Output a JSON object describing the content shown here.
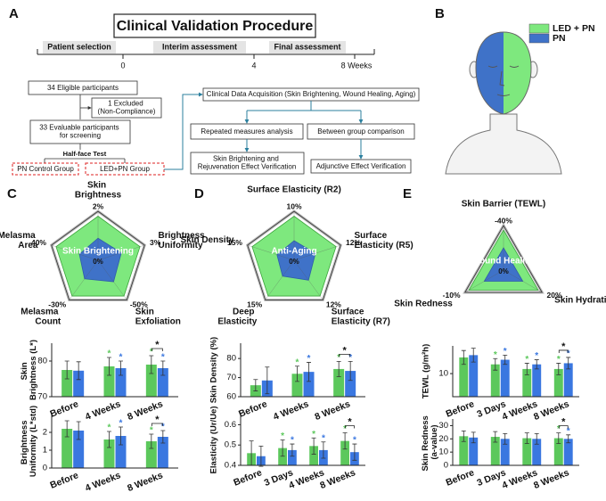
{
  "panels": [
    "A",
    "B",
    "C",
    "D",
    "E"
  ],
  "procedure": {
    "title": "Clinical Validation Procedure",
    "phases": [
      "Patient selection",
      "Interim assessment",
      "Final assessment"
    ],
    "timeline_ticks": [
      "0",
      "4",
      "8 Weeks"
    ],
    "eligible": "34 Eligible participants",
    "excluded": "1 Excluded (Non-Compliance)",
    "evaluable": "33 Evaluable participants for screening",
    "test": "Half-face Test",
    "groups": [
      "PN Control Group",
      "LED+PN Group"
    ],
    "acquisition": "Clinical Data Acquisition (Skin Brightening, Wound Healing, Aging)",
    "analyses": [
      "Repeated measures analysis",
      "Between group comparison"
    ],
    "outcomes": [
      "Skin Brightening and Rejuvenation Effect Verification",
      "Adjunctive Effect Verification"
    ]
  },
  "legend": {
    "series": [
      {
        "name": "LED + PN",
        "color": "#7ee87e"
      },
      {
        "name": "PN",
        "color": "#3f72c8"
      }
    ]
  },
  "chart_data": [
    {
      "type": "radar",
      "center_label": "Skin Brightening",
      "origin_label": "0%",
      "axes": [
        {
          "name": "Skin Brightness",
          "max": {
            "value": 2,
            "label": "2%"
          }
        },
        {
          "name": "Brightness Uniformity",
          "max": {
            "value": 3,
            "label": "3%"
          }
        },
        {
          "name": "Skin Exfoliation",
          "max": {
            "value": -50,
            "label": "-50%"
          }
        },
        {
          "name": "Melasma Count",
          "max": {
            "value": -30,
            "label": "-30%"
          }
        },
        {
          "name": "Melasma Area",
          "max": {
            "value": -40,
            "label": "-40%"
          }
        }
      ],
      "series": [
        {
          "color": "#7ee87e",
          "values": [
            1.8,
            2.7,
            -45,
            -27,
            -36
          ]
        },
        {
          "color": "#3f72c8",
          "values": [
            0.9,
            1.5,
            -27,
            -14,
            -16
          ]
        }
      ]
    },
    {
      "type": "radar",
      "center_label": "Anti-Aging",
      "origin_label": "0%",
      "axes": [
        {
          "name": "Surface Elasticity (R2)",
          "max": {
            "value": 10,
            "label": "10%"
          }
        },
        {
          "name": "Surface Elasticity (R5)",
          "max": {
            "value": 12,
            "label": "12%"
          }
        },
        {
          "name": "Surface Elasticity (R7)",
          "max": {
            "value": 12,
            "label": "12%"
          }
        },
        {
          "name": "Deep Elasticity",
          "max": {
            "value": 15,
            "label": "15%"
          }
        },
        {
          "name": "Skin Density",
          "max": {
            "value": 15,
            "label": "15%"
          }
        }
      ],
      "series": [
        {
          "color": "#7ee87e",
          "values": [
            9,
            10.8,
            10.8,
            13.5,
            13.5
          ]
        },
        {
          "color": "#3f72c8",
          "values": [
            4,
            5.5,
            6,
            6,
            5.5
          ]
        }
      ]
    },
    {
      "type": "radar",
      "center_label": "Wound Healing",
      "origin_label": "0%",
      "axes": [
        {
          "name": "Skin Barrier (TEWL)",
          "max": {
            "value": -40,
            "label": "-40%"
          }
        },
        {
          "name": "Skin Hydration",
          "max": {
            "value": 20,
            "label": "20%"
          }
        },
        {
          "name": "Skin Redness",
          "max": {
            "value": -10,
            "label": "-10%"
          }
        }
      ],
      "series": [
        {
          "color": "#7ee87e",
          "values": [
            -36,
            18,
            -9
          ]
        },
        {
          "color": "#3f72c8",
          "values": [
            -20,
            10,
            -5
          ]
        }
      ]
    },
    {
      "type": "bar",
      "ylabel": "Skin Brightness (L*)",
      "categories": [
        "Before",
        "4 Weeks",
        "8 Weeks"
      ],
      "ylim": [
        70,
        85
      ],
      "yticks": [
        70,
        80
      ],
      "series": [
        {
          "color": "#5cc85c",
          "values": [
            77.5,
            78.5,
            79
          ],
          "errors": [
            2.5,
            2.5,
            2.5
          ],
          "markers": [
            null,
            "*",
            "*"
          ]
        },
        {
          "color": "#3a77e0",
          "values": [
            77.3,
            78,
            78
          ],
          "errors": [
            2.5,
            2,
            2
          ],
          "markers": [
            null,
            "*",
            "*"
          ]
        }
      ],
      "comparison": [
        null,
        null,
        "*"
      ]
    },
    {
      "type": "bar",
      "ylabel": "Brightness Uniformity (L*std)",
      "categories": [
        "Before",
        "4 Weeks",
        "8 Weeks"
      ],
      "ylim": [
        0,
        3
      ],
      "yticks": [
        0,
        1,
        2
      ],
      "series": [
        {
          "color": "#5cc85c",
          "values": [
            2.2,
            1.6,
            1.5
          ],
          "errors": [
            0.45,
            0.45,
            0.4
          ],
          "markers": [
            null,
            "*",
            "*"
          ]
        },
        {
          "color": "#3a77e0",
          "values": [
            2.1,
            1.8,
            1.75
          ],
          "errors": [
            0.5,
            0.5,
            0.35
          ],
          "markers": [
            null,
            "*",
            "*"
          ]
        }
      ],
      "comparison": [
        null,
        null,
        "*"
      ]
    },
    {
      "type": "bar",
      "ylabel": "Skin Density (%)",
      "categories": [
        "Before",
        "4 Weeks",
        "8 Weeks"
      ],
      "ylim": [
        60,
        88
      ],
      "yticks": [
        60,
        70,
        80
      ],
      "series": [
        {
          "color": "#5cc85c",
          "values": [
            66,
            72,
            74.5
          ],
          "errors": [
            3,
            4,
            4
          ],
          "markers": [
            null,
            "*",
            "*"
          ]
        },
        {
          "color": "#3a77e0",
          "values": [
            68.5,
            73,
            73.5
          ],
          "errors": [
            7,
            5,
            5
          ],
          "markers": [
            null,
            "*",
            "*"
          ]
        }
      ],
      "comparison": [
        null,
        null,
        "*"
      ]
    },
    {
      "type": "bar",
      "ylabel": "Elasticity (Ur/Ue)",
      "categories": [
        "Before",
        "3 Days",
        "4 Weeks",
        "8 Weeks"
      ],
      "ylim": [
        0.4,
        0.65
      ],
      "yticks": [
        0.4,
        0.5,
        0.6
      ],
      "series": [
        {
          "color": "#5cc85c",
          "values": [
            0.46,
            0.485,
            0.495,
            0.52
          ],
          "errors": [
            0.06,
            0.04,
            0.04,
            0.04
          ],
          "markers": [
            null,
            "*",
            "*",
            "*"
          ]
        },
        {
          "color": "#3a77e0",
          "values": [
            0.445,
            0.475,
            0.475,
            0.465
          ],
          "errors": [
            0.05,
            0.03,
            0.04,
            0.04
          ],
          "markers": [
            null,
            "*",
            "*",
            "*"
          ]
        }
      ],
      "comparison": [
        null,
        null,
        null,
        "*"
      ]
    },
    {
      "type": "bar",
      "ylabel": "TEWL (g/m²h)",
      "categories": [
        "Before",
        "3 Days",
        "4 Weeks",
        "8 Weeks"
      ],
      "ylim": [
        0,
        22
      ],
      "yticks": [
        10
      ],
      "series": [
        {
          "color": "#5cc85c",
          "values": [
            17,
            14,
            12,
            12
          ],
          "errors": [
            3,
            2.5,
            2.5,
            2.5
          ],
          "markers": [
            null,
            "*",
            "*",
            "*"
          ]
        },
        {
          "color": "#3a77e0",
          "values": [
            18,
            16,
            14,
            14.5
          ],
          "errors": [
            3,
            2,
            2,
            2.5
          ],
          "markers": [
            null,
            "*",
            "*",
            "*"
          ]
        }
      ],
      "comparison": [
        null,
        null,
        null,
        "*"
      ]
    },
    {
      "type": "bar",
      "ylabel": "Skin Redness (a-value)",
      "categories": [
        "Before",
        "3 Days",
        "4 Weeks",
        "8 Weeks"
      ],
      "ylim": [
        0,
        35
      ],
      "yticks": [
        0,
        10,
        20,
        30
      ],
      "series": [
        {
          "color": "#5cc85c",
          "values": [
            22,
            21.5,
            20.5,
            20.5
          ],
          "errors": [
            4,
            4,
            4,
            4
          ],
          "markers": [
            null,
            null,
            null,
            "*"
          ]
        },
        {
          "color": "#3a77e0",
          "values": [
            21,
            20,
            20,
            20
          ],
          "errors": [
            4,
            4,
            4,
            3
          ],
          "markers": [
            null,
            null,
            null,
            "*"
          ]
        }
      ],
      "comparison": [
        null,
        null,
        null,
        "*"
      ]
    }
  ]
}
